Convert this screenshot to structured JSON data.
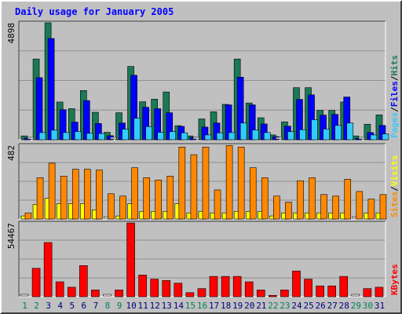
{
  "chart_data": [
    {
      "type": "bar",
      "title": "Daily usage for January 2005",
      "categories": [
        "1",
        "2",
        "3",
        "4",
        "5",
        "6",
        "7",
        "8",
        "9",
        "10",
        "11",
        "12",
        "13",
        "14",
        "15",
        "16",
        "17",
        "18",
        "19",
        "20",
        "21",
        "22",
        "23",
        "24",
        "25",
        "26",
        "27",
        "28",
        "29",
        "30",
        "31"
      ],
      "weekend_days": [
        "1",
        "2",
        "8",
        "9",
        "15",
        "16",
        "22",
        "23",
        "29",
        "30"
      ],
      "ymax_label": "4898",
      "ylim": [
        0,
        4898
      ],
      "series": [
        {
          "name": "Hits",
          "color": "#1a7a55",
          "values": [
            160,
            3380,
            4898,
            1580,
            1300,
            2060,
            1150,
            310,
            1130,
            3070,
            1590,
            1700,
            2000,
            590,
            160,
            870,
            1170,
            1480,
            3380,
            1540,
            920,
            200,
            750,
            2180,
            2180,
            1230,
            1230,
            1580,
            160,
            650,
            1040
          ]
        },
        {
          "name": "Files",
          "color": "#0000ff",
          "values": [
            70,
            2600,
            4240,
            1260,
            740,
            1640,
            680,
            170,
            700,
            2700,
            1360,
            1300,
            1130,
            560,
            100,
            530,
            700,
            1460,
            2620,
            1460,
            660,
            130,
            570,
            1690,
            1880,
            1030,
            1060,
            1790,
            60,
            300,
            600
          ]
        },
        {
          "name": "Pages",
          "color": "#33ccff",
          "values": [
            0,
            300,
            400,
            300,
            340,
            270,
            260,
            0,
            440,
            900,
            550,
            310,
            340,
            290,
            0,
            200,
            290,
            300,
            700,
            410,
            300,
            0,
            340,
            420,
            840,
            450,
            600,
            700,
            0,
            200,
            240
          ]
        }
      ],
      "legend_order": [
        "Pages",
        "Files",
        "Hits"
      ],
      "legend_colors": {
        "Pages": "#33ccff",
        "Files": "#0000ff",
        "Hits": "#1a7a55"
      }
    },
    {
      "type": "bar",
      "ymax_label": "482",
      "ylim": [
        0,
        482
      ],
      "series": [
        {
          "name": "Visits",
          "color": "#ffff00",
          "values": [
            20,
            95,
            135,
            100,
            100,
            100,
            60,
            0,
            20,
            100,
            50,
            50,
            50,
            100,
            40,
            50,
            40,
            40,
            50,
            50,
            50,
            20,
            40,
            40,
            40,
            40,
            40,
            40,
            0,
            40,
            40
          ]
        },
        {
          "name": "Sites",
          "color": "#ff8800",
          "values": [
            40,
            270,
            365,
            280,
            325,
            325,
            320,
            165,
            150,
            335,
            270,
            255,
            280,
            470,
            420,
            470,
            190,
            480,
            470,
            335,
            270,
            150,
            110,
            250,
            270,
            160,
            150,
            260,
            180,
            130,
            160
          ]
        }
      ],
      "legend_order": [
        "Sites",
        "Visits"
      ],
      "legend_colors": {
        "Sites": "#ff8800",
        "Visits": "#ffff00"
      }
    },
    {
      "type": "bar",
      "ymax_label": "54467",
      "ylim": [
        0,
        54467
      ],
      "series": [
        {
          "name": "KBytes",
          "color": "#ff0000",
          "values": [
            0,
            21000,
            40000,
            11000,
            7000,
            23000,
            5000,
            0,
            5000,
            54467,
            16000,
            13000,
            12000,
            10000,
            3000,
            6000,
            15000,
            15000,
            15000,
            11000,
            5000,
            1000,
            5000,
            19000,
            13000,
            8000,
            8000,
            15000,
            0,
            6000,
            7000
          ]
        }
      ],
      "legend_order": [
        "KBytes"
      ],
      "legend_colors": {
        "KBytes": "#ff0000"
      }
    }
  ]
}
